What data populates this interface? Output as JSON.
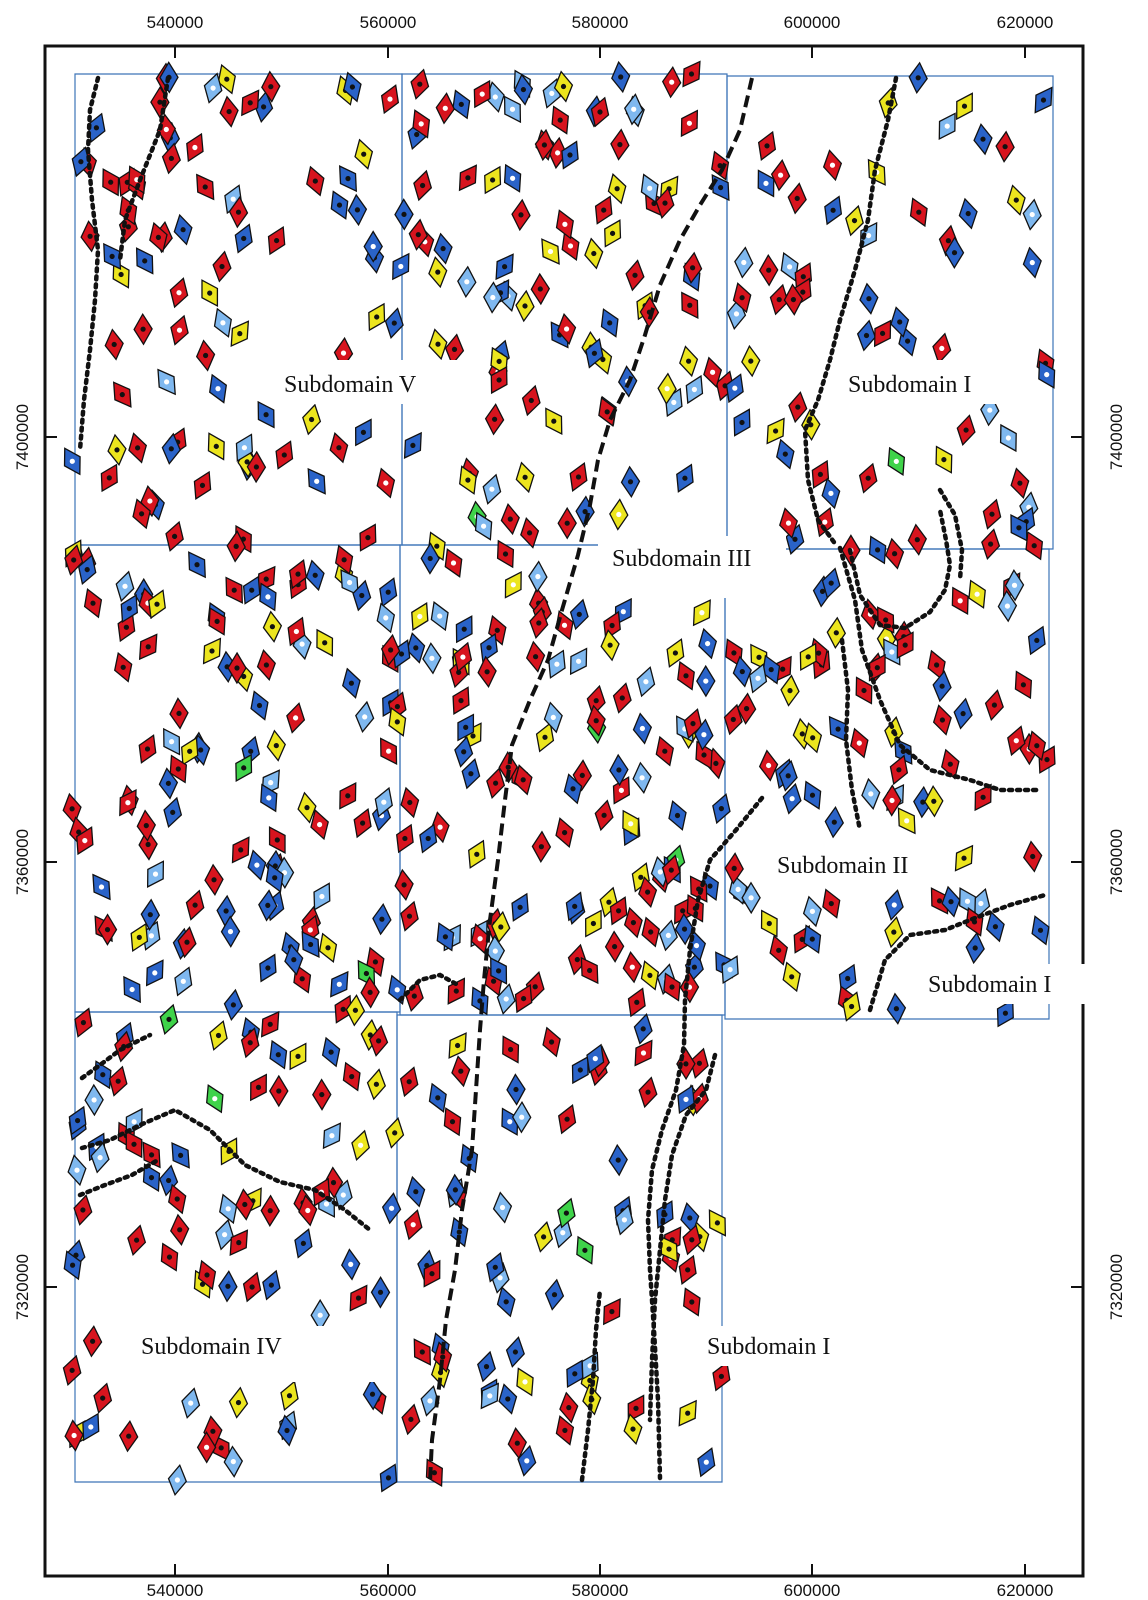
{
  "map": {
    "x_axis_ticks": [
      "540000",
      "560000",
      "580000",
      "600000",
      "620000"
    ],
    "y_axis_ticks": [
      "7400000",
      "7360000",
      "7320000"
    ],
    "regions": [
      {
        "id": "v",
        "label": "Subdomain V"
      },
      {
        "id": "i-north",
        "label": "Subdomain I"
      },
      {
        "id": "iii",
        "label": "Subdomain III"
      },
      {
        "id": "ii",
        "label": "Subdomain II"
      },
      {
        "id": "i-east",
        "label": "Subdomain I"
      },
      {
        "id": "iv",
        "label": "Subdomain IV"
      },
      {
        "id": "i-south",
        "label": "Subdomain I"
      }
    ],
    "symbol_colors": {
      "red": "#d7141e",
      "blue": "#2a63c8",
      "yellow": "#ece51e",
      "green": "#3fd34a",
      "light_blue": "#7fb8ef",
      "outline": "#111111",
      "grid_line": "#3d74b8"
    },
    "symbol_icon": "diamond-marker-icon",
    "boundary_styles": [
      "dashed-boundary",
      "dotted-boundary"
    ]
  }
}
